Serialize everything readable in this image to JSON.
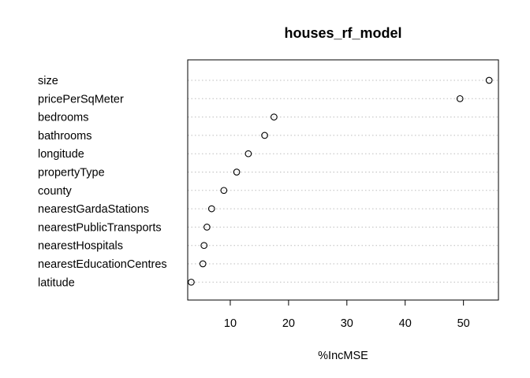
{
  "chart_data": {
    "type": "scatter",
    "subtype": "dotchart",
    "title": "houses_rf_model",
    "xlabel": "%IncMSE",
    "ylabel": "",
    "xlim": [
      2.7,
      56.0
    ],
    "xticks": [
      10,
      20,
      30,
      40,
      50
    ],
    "grid": "horizontal dotted guide lines",
    "categories": [
      "size",
      "pricePerSqMeter",
      "bedrooms",
      "bathrooms",
      "longitude",
      "propertyType",
      "county",
      "nearestGardaStations",
      "nearestPublicTransports",
      "nearestHospitals",
      "nearestEducationCentres",
      "latitude"
    ],
    "values": [
      54.4,
      49.4,
      17.5,
      15.9,
      13.1,
      11.1,
      8.9,
      6.8,
      6.0,
      5.5,
      5.3,
      3.3
    ]
  }
}
